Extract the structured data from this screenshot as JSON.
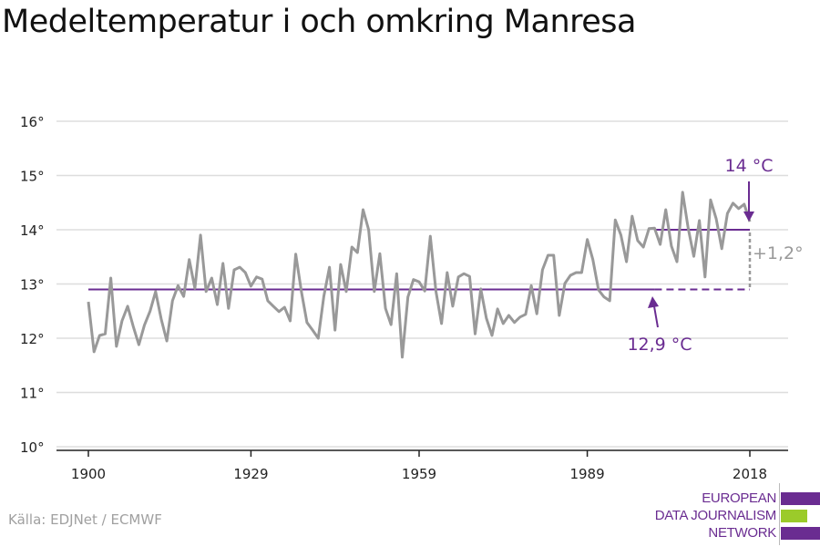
{
  "title": "Medeltemperatur i och omkring Manresa",
  "source": "Källa: EDJNet / ECMWF",
  "logo": {
    "lines": [
      "EUROPEAN",
      "DATA JOURNALISM",
      "NETWORK"
    ],
    "colors": [
      "#6a2c91",
      "#9bcb2a",
      "#6a2c91"
    ]
  },
  "chart_data": {
    "type": "line",
    "title": "",
    "xlabel": "",
    "ylabel": "",
    "xlim": [
      1900,
      2018
    ],
    "ylim": [
      10,
      16
    ],
    "yticks": [
      10,
      11,
      12,
      13,
      14,
      15,
      16
    ],
    "ytick_labels": [
      "10°",
      "11°",
      "12°",
      "13°",
      "14°",
      "15°",
      "16°"
    ],
    "xticks": [
      1900,
      1929,
      1959,
      1989,
      2018
    ],
    "xtick_labels": [
      "1900",
      "1929",
      "1959",
      "1989",
      "2018"
    ],
    "grid": "horizontal",
    "series": [
      {
        "color": "#999999",
        "x_start": 1900,
        "values": [
          12.67,
          11.75,
          12.05,
          12.08,
          13.11,
          11.85,
          12.32,
          12.59,
          12.22,
          11.88,
          12.24,
          12.5,
          12.86,
          12.35,
          11.95,
          12.69,
          12.97,
          12.77,
          13.45,
          12.92,
          13.9,
          12.86,
          13.11,
          12.62,
          13.38,
          12.55,
          13.26,
          13.31,
          13.21,
          12.96,
          13.13,
          13.09,
          12.69,
          12.59,
          12.49,
          12.57,
          12.32,
          13.55,
          12.86,
          12.29,
          12.15,
          12.0,
          12.77,
          13.31,
          12.15,
          13.36,
          12.86,
          13.68,
          13.58,
          14.37,
          14.0,
          12.86,
          13.56,
          12.55,
          12.25,
          13.19,
          11.65,
          12.76,
          13.08,
          13.04,
          12.87,
          13.88,
          12.86,
          12.27,
          13.21,
          12.59,
          13.13,
          13.19,
          13.14,
          12.08,
          12.91,
          12.37,
          12.05,
          12.54,
          12.27,
          12.42,
          12.29,
          12.39,
          12.44,
          12.97,
          12.45,
          13.26,
          13.53,
          13.53,
          12.42,
          13.01,
          13.16,
          13.21,
          13.21,
          13.82,
          13.45,
          12.89,
          12.76,
          12.69,
          14.18,
          13.9,
          13.41,
          14.25,
          13.8,
          13.68,
          14.02,
          14.03,
          13.73,
          14.37,
          13.7,
          13.41,
          14.69,
          14.03,
          13.51,
          14.17,
          13.13,
          14.55,
          14.2,
          13.65,
          14.3,
          14.49,
          14.39,
          14.47,
          14.15
        ]
      }
    ],
    "reference_lines": [
      {
        "value": 12.9,
        "label": "12,9 °C",
        "solid_from": 1900,
        "solid_to": 2001,
        "dashed_to": 2018,
        "color": "#6a2c91"
      },
      {
        "value": 14.0,
        "label": "14 °C",
        "from": 2001,
        "to": 2018,
        "color": "#6a2c91"
      }
    ],
    "difference": {
      "label": "+1,2°",
      "color": "#999999"
    }
  }
}
